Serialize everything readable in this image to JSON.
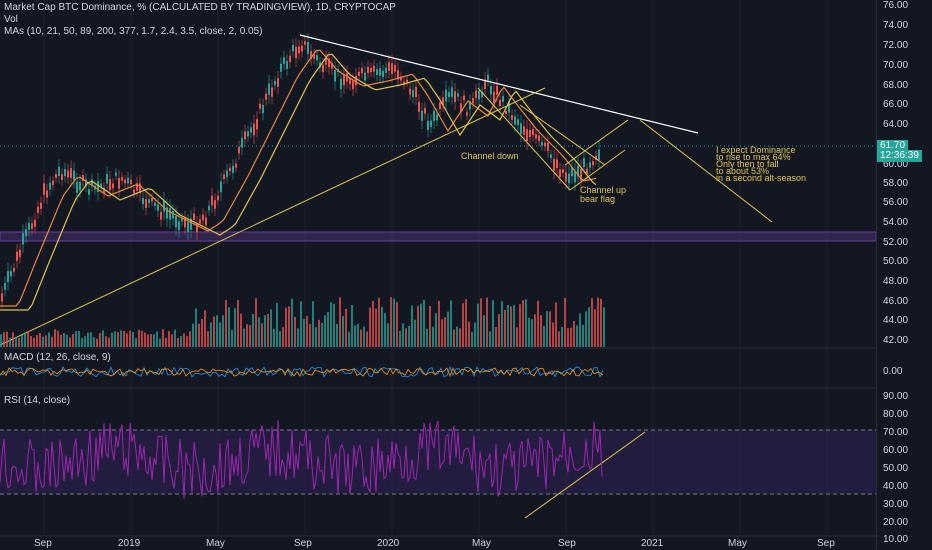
{
  "header": {
    "title": "Market Cap BTC Dominance, % (CALCULATED BY TRADINGVIEW), 1D, CRYPTOCAP",
    "vol_label": "Vol",
    "mas_label": "MAs (10, 21, 50, 89, 200, 377, 1.7, 2.4, 3.5, close, 2, 0.05)"
  },
  "macd_label": "MACD (12, 26, close, 9)",
  "rsi_label": "RSI (14, close)",
  "price_axis": [
    "76.00",
    "74.00",
    "72.00",
    "70.00",
    "68.00",
    "66.00",
    "64.00",
    "62.00",
    "60.00",
    "58.00",
    "56.00",
    "54.00",
    "52.00",
    "50.00",
    "48.00",
    "46.00",
    "44.00",
    "42.00"
  ],
  "price_tag": {
    "value": "61.70",
    "time": "12:36:39"
  },
  "macd_axis": [
    "0.00"
  ],
  "rsi_axis": [
    "90.00",
    "80.00",
    "70.00",
    "60.00",
    "50.00",
    "40.00",
    "30.00",
    "20.00",
    "10.00"
  ],
  "time_axis": [
    "Sep",
    "2019",
    "May",
    "Sep",
    "2020",
    "May",
    "Sep",
    "2021",
    "May",
    "Sep"
  ],
  "annotations": {
    "channel_down": "Channel down",
    "channel_up_1": "Channel up",
    "channel_up_2": "bear flag",
    "note_1": "I expect Dominance",
    "note_2": "to rise to max 64%",
    "note_3": "Only then to fall",
    "note_4": "to about 53%",
    "note_5": "in a second alt-season"
  },
  "colors": {
    "up": "#26a69a",
    "down": "#ef5350",
    "ma_yellow": "#e0c44c",
    "ma_orange": "#e8873a",
    "rsi": "#9c27b0",
    "trend": "#ffffff",
    "band": "#6a3d9a",
    "price_tag": "#26a69a"
  }
}
